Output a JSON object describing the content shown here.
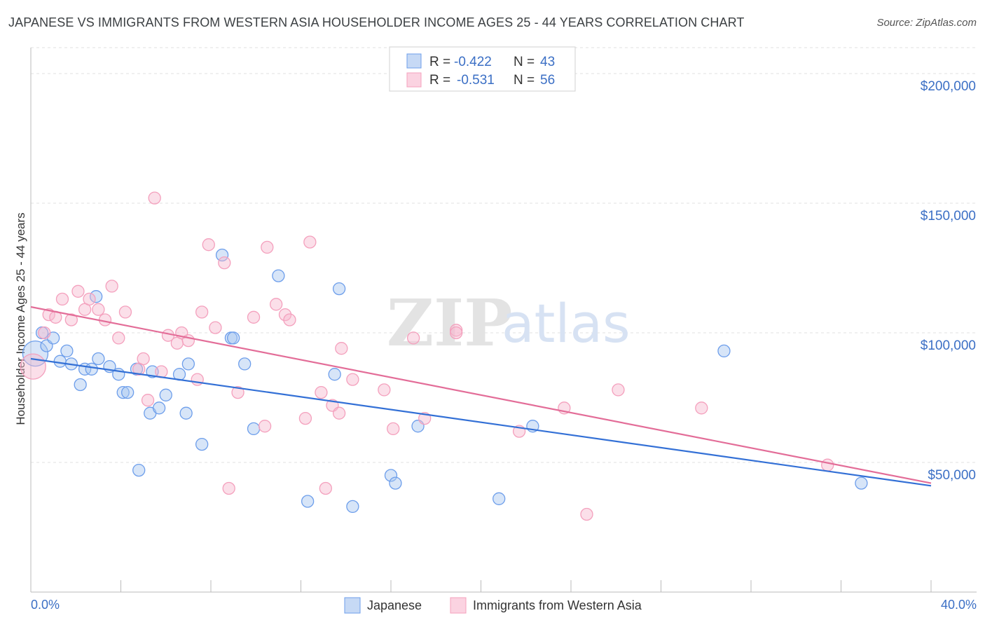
{
  "title": "JAPANESE VS IMMIGRANTS FROM WESTERN ASIA HOUSEHOLDER INCOME AGES 25 - 44 YEARS CORRELATION CHART",
  "source": "Source: ZipAtlas.com",
  "watermark": {
    "zip": "ZIP",
    "atlas": "atlas"
  },
  "legend": {
    "r_label": "R =",
    "n_label": "N =",
    "rows": [
      {
        "r": "-0.422",
        "n": "43"
      },
      {
        "r": "-0.531",
        "n": "56"
      }
    ]
  },
  "chart_data": {
    "type": "scatter",
    "title": "JAPANESE VS IMMIGRANTS FROM WESTERN ASIA HOUSEHOLDER INCOME AGES 25 - 44 YEARS CORRELATION CHART",
    "xlabel": "",
    "ylabel": "Householder Income Ages 25 - 44 years",
    "xlim": [
      0,
      40
    ],
    "ylim": [
      0,
      210000
    ],
    "x_tick_labels": [
      "0.0%",
      "40.0%"
    ],
    "y_ticks": [
      50000,
      100000,
      150000,
      200000
    ],
    "y_tick_labels": [
      "$50,000",
      "$100,000",
      "$150,000",
      "$200,000"
    ],
    "grid": true,
    "legend_position": "top-center",
    "series": [
      {
        "name": "Japanese",
        "color": "#6d9eeb",
        "r": -0.422,
        "n": 43,
        "trend": {
          "x0": 0,
          "y0": 90000,
          "x1": 40,
          "y1": 41000
        },
        "points": [
          [
            0.2,
            92000
          ],
          [
            0.5,
            100000
          ],
          [
            0.7,
            95000
          ],
          [
            1.0,
            98000
          ],
          [
            1.3,
            89000
          ],
          [
            1.6,
            93000
          ],
          [
            1.8,
            88000
          ],
          [
            2.2,
            80000
          ],
          [
            2.4,
            86000
          ],
          [
            2.7,
            86000
          ],
          [
            2.9,
            114000
          ],
          [
            3.0,
            90000
          ],
          [
            3.5,
            87000
          ],
          [
            3.9,
            84000
          ],
          [
            4.1,
            77000
          ],
          [
            4.3,
            77000
          ],
          [
            4.7,
            86000
          ],
          [
            4.8,
            47000
          ],
          [
            5.3,
            69000
          ],
          [
            5.4,
            85000
          ],
          [
            5.7,
            71000
          ],
          [
            6.0,
            76000
          ],
          [
            6.6,
            84000
          ],
          [
            6.9,
            69000
          ],
          [
            7.0,
            88000
          ],
          [
            7.6,
            57000
          ],
          [
            8.5,
            130000
          ],
          [
            8.9,
            98000
          ],
          [
            9.0,
            98000
          ],
          [
            9.5,
            88000
          ],
          [
            9.9,
            63000
          ],
          [
            11.0,
            122000
          ],
          [
            12.3,
            35000
          ],
          [
            13.5,
            84000
          ],
          [
            13.7,
            117000
          ],
          [
            14.3,
            33000
          ],
          [
            16.0,
            45000
          ],
          [
            16.2,
            42000
          ],
          [
            17.2,
            64000
          ],
          [
            20.8,
            36000
          ],
          [
            22.3,
            64000
          ],
          [
            30.8,
            93000
          ],
          [
            36.9,
            42000
          ]
        ]
      },
      {
        "name": "Immigrants from Western Asia",
        "color": "#f4a0bd",
        "r": -0.531,
        "n": 56,
        "trend": {
          "x0": 0,
          "y0": 110000,
          "x1": 40,
          "y1": 42000
        },
        "points": [
          [
            0.1,
            87000
          ],
          [
            0.6,
            100000
          ],
          [
            0.8,
            107000
          ],
          [
            1.1,
            106000
          ],
          [
            1.4,
            113000
          ],
          [
            1.8,
            105000
          ],
          [
            2.1,
            116000
          ],
          [
            2.4,
            109000
          ],
          [
            2.6,
            113000
          ],
          [
            3.0,
            109000
          ],
          [
            3.3,
            105000
          ],
          [
            3.6,
            118000
          ],
          [
            3.9,
            98000
          ],
          [
            4.2,
            108000
          ],
          [
            4.8,
            86000
          ],
          [
            5.0,
            90000
          ],
          [
            5.2,
            74000
          ],
          [
            5.5,
            152000
          ],
          [
            5.8,
            85000
          ],
          [
            6.1,
            99000
          ],
          [
            6.5,
            96000
          ],
          [
            6.7,
            100000
          ],
          [
            7.0,
            97000
          ],
          [
            7.4,
            82000
          ],
          [
            7.6,
            108000
          ],
          [
            7.9,
            134000
          ],
          [
            8.2,
            102000
          ],
          [
            8.6,
            127000
          ],
          [
            8.8,
            40000
          ],
          [
            9.2,
            77000
          ],
          [
            9.9,
            106000
          ],
          [
            10.4,
            64000
          ],
          [
            10.5,
            133000
          ],
          [
            10.9,
            111000
          ],
          [
            11.3,
            107000
          ],
          [
            11.5,
            105000
          ],
          [
            12.2,
            67000
          ],
          [
            12.4,
            135000
          ],
          [
            12.9,
            77000
          ],
          [
            13.1,
            40000
          ],
          [
            13.4,
            72000
          ],
          [
            13.7,
            69000
          ],
          [
            13.8,
            94000
          ],
          [
            14.3,
            82000
          ],
          [
            15.7,
            78000
          ],
          [
            16.1,
            63000
          ],
          [
            17.0,
            98000
          ],
          [
            17.5,
            67000
          ],
          [
            18.9,
            101000
          ],
          [
            18.9,
            100000
          ],
          [
            21.7,
            62000
          ],
          [
            23.7,
            71000
          ],
          [
            24.7,
            30000
          ],
          [
            26.1,
            78000
          ],
          [
            29.8,
            71000
          ],
          [
            35.4,
            49000
          ]
        ]
      }
    ]
  }
}
